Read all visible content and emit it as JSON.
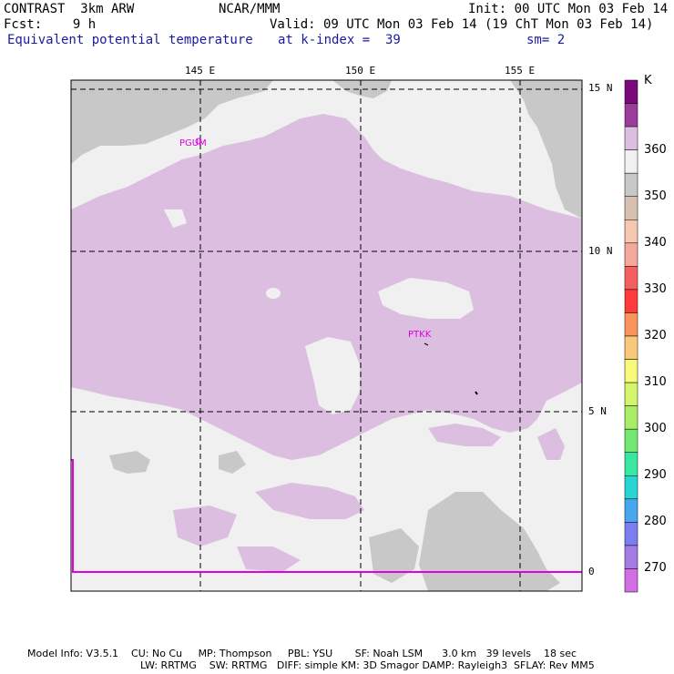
{
  "header": {
    "line1_left": "CONTRAST  3km ARW",
    "line1_mid": "NCAR/MMM",
    "line1_right": "Init: 00 UTC Mon 03 Feb 14",
    "line2_left": "Fcst:    9 h",
    "line2_right": "Valid: 09 UTC Mon 03 Feb 14 (19 ChT Mon 03 Feb 14)",
    "line3_left": "Equivalent potential temperature",
    "line3_mid": "at k-index =  39",
    "line3_right": "sm= 2"
  },
  "map": {
    "lon_labels": [
      "145 E",
      "150 E",
      "155 E"
    ],
    "lat_labels": [
      "15 N",
      "10 N",
      "5 N",
      "0"
    ],
    "stations": [
      "PGUM",
      "PTKK"
    ],
    "colors": {
      "land_background": "#f0f0f0",
      "lavender_fill": "#dcbfe0",
      "gray_fill": "#c8c8c8",
      "grid_line": "#000000",
      "magenta_line": "#e000e0"
    }
  },
  "colorbar": {
    "unit": "K",
    "levels": [
      "360",
      "350",
      "340",
      "330",
      "320",
      "310",
      "300",
      "290",
      "280",
      "270"
    ],
    "colors": [
      "#7a0a7a",
      "#9a3c9a",
      "#dcbfe0",
      "#f0f0f0",
      "#c8c8c8",
      "#d8c0b0",
      "#f4c8b0",
      "#f4a89c",
      "#f46060",
      "#ff3a3a",
      "#f8945a",
      "#fac87a",
      "#f8f87a",
      "#d4f46c",
      "#a8ec68",
      "#72e872",
      "#38e8a0",
      "#28d4d4",
      "#46a6ee",
      "#7a7ef0",
      "#a47ae4",
      "#d26ee4"
    ]
  },
  "footer": {
    "line1": "Model Info: V3.5.1    CU: No Cu     MP: Thompson     PBL: YSU       SF: Noah LSM      3.0 km   39 levels    18 sec",
    "line2": "LW: RRTMG    SW: RRTMG   DIFF: simple KM: 3D Smagor DAMP: Rayleigh3  SFLAY: Rev MM5"
  }
}
